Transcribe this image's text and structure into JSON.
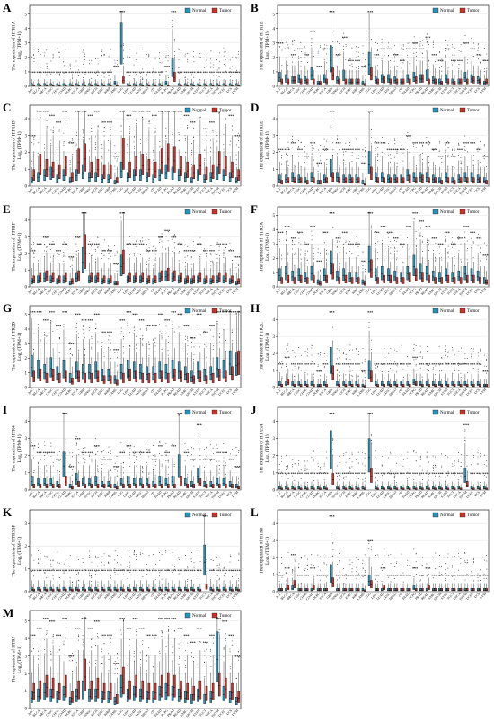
{
  "colors": {
    "normal": "#2e8fb3",
    "tumor": "#c2372d",
    "grid": "#d9d9d9",
    "frame": "#000000"
  },
  "legend": {
    "normal_label": "Normal",
    "tumor_label": "Tumor"
  },
  "cancers": [
    "ACC",
    "BLCA",
    "BRCA",
    "CESC",
    "CHOL",
    "COAD",
    "DLBC",
    "ESCA",
    "GBM",
    "HNSC",
    "KICH",
    "KIRC",
    "KIRP",
    "LAML",
    "LGG",
    "LIHC",
    "LUAD",
    "LUSC",
    "MESO",
    "OV",
    "PAAD",
    "PCPG",
    "PRAD",
    "READ",
    "SARC",
    "SKCM",
    "STAD",
    "TGCT",
    "THCA",
    "THYM",
    "UCEC",
    "UCS",
    "UVM"
  ],
  "chart_data": [
    {
      "panel": "A",
      "type": "box",
      "gene": "HTR1A",
      "ylabel_line1": "The expression of HTR1A",
      "ylabel_line2": "Log₂ (TPM+1)",
      "yticks": [
        0,
        1,
        2,
        3,
        4,
        5
      ],
      "ylim": [
        0,
        5.6
      ],
      "normal": [
        0.1,
        0.1,
        0.1,
        0.1,
        0.1,
        0.1,
        0.1,
        0.1,
        0.1,
        0.1,
        0.1,
        0.1,
        0.1,
        0.2,
        2.8,
        0.1,
        0.1,
        0.1,
        0.1,
        0.1,
        0.1,
        0.2,
        1.2,
        0.1,
        0.1,
        0.1,
        0.1,
        0.1,
        0.1,
        0.1,
        0.1,
        0.1,
        0.1
      ],
      "tumor": [
        0.05,
        0.05,
        0.05,
        0.05,
        0.05,
        0.05,
        0.05,
        0.05,
        0.05,
        0.05,
        0.05,
        0.05,
        0.05,
        0.05,
        0.4,
        0.05,
        0.05,
        0.05,
        0.05,
        0.05,
        0.05,
        0.05,
        0.6,
        0.05,
        0.05,
        0.05,
        0.05,
        0.05,
        0.05,
        0.05,
        0.05,
        0.05,
        0.05
      ]
    },
    {
      "panel": "B",
      "type": "box",
      "gene": "HTR1B",
      "ylabel_line1": "The expression of HTR1B",
      "ylabel_line2": "Log₂ (TPM+1)",
      "yticks": [
        0,
        1,
        2,
        3,
        4,
        5
      ],
      "ylim": [
        0,
        5.6
      ],
      "normal": [
        0.6,
        0.5,
        0.4,
        0.5,
        0.4,
        0.8,
        0.2,
        0.5,
        1.8,
        0.4,
        0.7,
        0.3,
        0.3,
        0.2,
        1.5,
        0.4,
        0.5,
        0.5,
        0.4,
        0.3,
        0.5,
        0.6,
        0.5,
        0.7,
        0.4,
        0.3,
        0.5,
        0.3,
        0.3,
        0.6,
        0.5,
        0.4,
        0.2
      ],
      "tumor": [
        0.3,
        0.3,
        0.4,
        0.3,
        0.3,
        0.3,
        0.2,
        0.3,
        0.8,
        0.3,
        0.3,
        0.3,
        0.3,
        0.1,
        0.8,
        0.3,
        0.4,
        0.3,
        0.3,
        0.3,
        0.3,
        0.4,
        0.5,
        0.3,
        0.3,
        0.2,
        0.3,
        0.2,
        0.3,
        0.3,
        0.4,
        0.3,
        0.3
      ]
    },
    {
      "panel": "C",
      "type": "box",
      "gene": "HTR1D",
      "ylabel_line1": "The expression of HTR1D",
      "ylabel_line2": "Log₂ (TPM+1)",
      "yticks": [
        0,
        1,
        2,
        3,
        4
      ],
      "ylim": [
        0,
        4.8
      ],
      "normal": [
        0.3,
        0.5,
        0.6,
        0.7,
        0.4,
        0.6,
        0.3,
        0.6,
        0.8,
        0.5,
        0.5,
        0.4,
        0.4,
        0.2,
        0.9,
        0.5,
        0.6,
        0.6,
        0.5,
        0.4,
        0.6,
        0.8,
        0.7,
        0.6,
        0.5,
        0.3,
        0.6,
        0.4,
        0.5,
        0.7,
        0.6,
        0.5,
        0.3
      ],
      "tumor": [
        0.6,
        1.2,
        1.0,
        0.9,
        0.8,
        1.1,
        0.5,
        1.4,
        1.6,
        0.9,
        1.0,
        0.8,
        0.8,
        0.3,
        1.8,
        0.9,
        1.1,
        1.2,
        1.0,
        0.9,
        1.4,
        1.6,
        1.5,
        1.1,
        0.9,
        0.8,
        1.2,
        0.7,
        0.8,
        1.3,
        1.1,
        0.9,
        0.6
      ]
    },
    {
      "panel": "D",
      "type": "box",
      "gene": "HTR1E",
      "ylabel_line1": "The expression of HTR1E",
      "ylabel_line2": "Log₂ (TPM+1)",
      "yticks": [
        0,
        1,
        2,
        3,
        4
      ],
      "ylim": [
        0,
        4.8
      ],
      "normal": [
        0.4,
        0.4,
        0.5,
        0.4,
        0.3,
        0.5,
        0.2,
        0.4,
        1.0,
        0.5,
        0.4,
        0.4,
        0.4,
        0.2,
        1.3,
        0.5,
        0.5,
        0.4,
        0.4,
        0.4,
        0.6,
        0.5,
        0.5,
        0.5,
        0.4,
        0.3,
        0.5,
        0.3,
        0.4,
        0.5,
        0.5,
        0.4,
        0.3
      ],
      "tumor": [
        0.2,
        0.3,
        0.3,
        0.3,
        0.2,
        0.3,
        0.2,
        0.3,
        0.5,
        0.3,
        0.3,
        0.3,
        0.3,
        0.1,
        0.7,
        0.3,
        0.3,
        0.3,
        0.3,
        0.3,
        0.4,
        0.3,
        0.4,
        0.3,
        0.3,
        0.2,
        0.3,
        0.2,
        0.3,
        0.3,
        0.3,
        0.3,
        0.2
      ]
    },
    {
      "panel": "E",
      "type": "box",
      "gene": "HTR1F",
      "ylabel_line1": "The expression of HTR1F",
      "ylabel_line2": "Log₂ (TPM+1)",
      "yticks": [
        0,
        1,
        2,
        3,
        4
      ],
      "ylim": [
        0,
        4.8
      ],
      "normal": [
        0.3,
        0.4,
        0.5,
        0.4,
        0.3,
        0.4,
        0.2,
        0.5,
        1.5,
        0.4,
        0.4,
        0.3,
        0.3,
        0.2,
        1.2,
        0.4,
        0.4,
        0.4,
        0.3,
        0.3,
        0.5,
        0.6,
        0.5,
        0.4,
        0.3,
        0.3,
        0.4,
        0.3,
        0.3,
        0.4,
        0.4,
        0.3,
        0.2
      ],
      "tumor": [
        0.4,
        0.5,
        0.6,
        0.5,
        0.4,
        0.5,
        0.3,
        0.6,
        2.0,
        0.5,
        0.5,
        0.4,
        0.4,
        0.2,
        1.4,
        0.5,
        0.5,
        0.5,
        0.4,
        0.4,
        0.6,
        0.7,
        0.6,
        0.5,
        0.4,
        0.4,
        0.5,
        0.4,
        0.4,
        0.5,
        0.5,
        0.4,
        0.3
      ]
    },
    {
      "panel": "F",
      "type": "box",
      "gene": "HTR2A",
      "ylabel_line1": "The expression of HTR2A",
      "ylabel_line2": "Log₂ (TPM+1)",
      "yticks": [
        0,
        1,
        2,
        3,
        4,
        5
      ],
      "ylim": [
        0,
        5.6
      ],
      "normal": [
        0.8,
        0.9,
        0.7,
        0.8,
        0.6,
        0.9,
        0.3,
        0.8,
        1.6,
        0.7,
        0.8,
        0.6,
        0.6,
        0.3,
        1.8,
        0.8,
        0.9,
        0.8,
        0.7,
        0.6,
        0.9,
        1.4,
        1.0,
        0.9,
        0.7,
        0.6,
        0.8,
        0.6,
        0.7,
        0.9,
        0.8,
        0.7,
        0.4
      ],
      "tumor": [
        0.4,
        0.5,
        0.4,
        0.5,
        0.4,
        0.5,
        0.2,
        0.5,
        1.0,
        0.4,
        0.5,
        0.4,
        0.4,
        0.2,
        1.2,
        0.4,
        0.5,
        0.5,
        0.4,
        0.4,
        0.6,
        0.8,
        0.6,
        0.5,
        0.4,
        0.4,
        0.5,
        0.4,
        0.4,
        0.5,
        0.5,
        0.4,
        0.3
      ]
    },
    {
      "panel": "G",
      "type": "box",
      "gene": "HTR2B",
      "ylabel_line1": "The expression of HTR2B",
      "ylabel_line2": "Log₂ (TPM+1)",
      "yticks": [
        0,
        1,
        2,
        3,
        4,
        5
      ],
      "ylim": [
        0,
        5.6
      ],
      "normal": [
        1.4,
        1.2,
        1.0,
        1.3,
        0.9,
        1.2,
        0.6,
        1.1,
        1.0,
        1.0,
        1.1,
        0.8,
        0.8,
        0.5,
        1.0,
        1.2,
        1.1,
        1.0,
        0.9,
        0.9,
        1.1,
        1.0,
        1.2,
        1.1,
        0.9,
        0.7,
        1.1,
        0.8,
        0.9,
        1.3,
        1.2,
        1.6,
        1.5
      ],
      "tumor": [
        0.7,
        0.8,
        0.6,
        0.8,
        0.6,
        0.7,
        0.4,
        0.7,
        0.6,
        0.6,
        0.7,
        0.5,
        0.5,
        0.3,
        0.6,
        0.8,
        0.7,
        0.6,
        0.6,
        0.6,
        0.7,
        0.6,
        0.8,
        0.7,
        0.6,
        0.5,
        0.7,
        0.5,
        0.6,
        0.8,
        0.7,
        0.9,
        1.6
      ]
    },
    {
      "panel": "H",
      "type": "box",
      "gene": "HTR2C",
      "ylabel_line1": "The expression of HTR2C",
      "ylabel_line2": "Log₂ (TPM+1)",
      "yticks": [
        0,
        1,
        2,
        3,
        4
      ],
      "ylim": [
        0,
        4.8
      ],
      "normal": [
        0.2,
        0.2,
        0.2,
        0.2,
        0.2,
        0.2,
        0.1,
        0.2,
        1.5,
        0.2,
        0.2,
        0.2,
        0.2,
        0.1,
        1.0,
        0.2,
        0.2,
        0.2,
        0.2,
        0.2,
        0.2,
        0.3,
        0.2,
        0.2,
        0.2,
        0.2,
        0.2,
        0.2,
        0.2,
        0.2,
        0.2,
        0.2,
        0.1
      ],
      "tumor": [
        0.1,
        0.3,
        0.1,
        0.1,
        0.1,
        0.1,
        0.1,
        0.1,
        0.8,
        0.1,
        0.1,
        0.1,
        0.1,
        0.05,
        0.6,
        0.1,
        0.1,
        0.1,
        0.1,
        0.1,
        0.1,
        0.2,
        0.1,
        0.1,
        0.1,
        0.1,
        0.1,
        0.1,
        0.1,
        0.1,
        0.1,
        0.1,
        0.1
      ]
    },
    {
      "panel": "I",
      "type": "box",
      "gene": "HTR4",
      "ylabel_line1": "The expression of HTR4",
      "ylabel_line2": "Log₂ (TPM+1)",
      "yticks": [
        0,
        1,
        2,
        3,
        4
      ],
      "ylim": [
        0,
        4.8
      ],
      "normal": [
        0.5,
        0.4,
        0.4,
        0.4,
        0.3,
        1.4,
        0.2,
        0.6,
        0.4,
        0.4,
        0.5,
        0.3,
        0.3,
        0.2,
        0.4,
        0.5,
        0.4,
        0.4,
        0.4,
        0.3,
        0.5,
        0.4,
        0.5,
        1.3,
        0.4,
        0.3,
        0.8,
        0.3,
        0.3,
        0.4,
        0.4,
        0.3,
        0.2
      ],
      "tumor": [
        0.2,
        0.2,
        0.2,
        0.2,
        0.2,
        0.5,
        0.1,
        0.3,
        0.2,
        0.2,
        0.2,
        0.2,
        0.2,
        0.1,
        0.2,
        0.2,
        0.2,
        0.2,
        0.2,
        0.2,
        0.2,
        0.2,
        0.2,
        0.5,
        0.2,
        0.2,
        0.4,
        0.2,
        0.2,
        0.2,
        0.2,
        0.2,
        0.1
      ]
    },
    {
      "panel": "J",
      "type": "box",
      "gene": "HTR5A",
      "ylabel_line1": "The expression of HTR5A",
      "ylabel_line2": "Log₂ (TPM+1)",
      "yticks": [
        0,
        1,
        2,
        3,
        4
      ],
      "ylim": [
        0,
        4.8
      ],
      "normal": [
        0.1,
        0.1,
        0.1,
        0.1,
        0.1,
        0.1,
        0.1,
        0.1,
        2.2,
        0.1,
        0.1,
        0.1,
        0.1,
        0.1,
        1.9,
        0.1,
        0.1,
        0.1,
        0.1,
        0.1,
        0.1,
        0.1,
        0.1,
        0.1,
        0.1,
        0.1,
        0.1,
        0.1,
        0.1,
        0.8,
        0.1,
        0.1,
        0.1
      ],
      "tumor": [
        0.05,
        0.05,
        0.05,
        0.05,
        0.05,
        0.05,
        0.05,
        0.05,
        0.6,
        0.05,
        0.05,
        0.05,
        0.05,
        0.05,
        0.8,
        0.05,
        0.05,
        0.05,
        0.05,
        0.05,
        0.05,
        0.05,
        0.05,
        0.05,
        0.05,
        0.05,
        0.05,
        0.05,
        0.05,
        0.3,
        0.05,
        0.05,
        0.05
      ]
    },
    {
      "panel": "K",
      "type": "box",
      "gene": "HTR5BP",
      "ylabel_line1": "The expression of HTR5BP",
      "ylabel_line2": "Log₂ (TPM+1)",
      "yticks": [
        0,
        1,
        2,
        3
      ],
      "ylim": [
        0,
        3.6
      ],
      "normal": [
        0.1,
        0.1,
        0.1,
        0.1,
        0.1,
        0.1,
        0.1,
        0.1,
        0.1,
        0.1,
        0.1,
        0.1,
        0.1,
        0.1,
        0.1,
        0.1,
        0.1,
        0.1,
        0.1,
        0.1,
        0.1,
        0.1,
        0.1,
        0.1,
        0.1,
        0.1,
        0.1,
        1.3,
        0.1,
        0.1,
        0.1,
        0.1,
        0.1
      ],
      "tumor": [
        0.05,
        0.05,
        0.05,
        0.05,
        0.05,
        0.05,
        0.05,
        0.05,
        0.05,
        0.05,
        0.05,
        0.05,
        0.05,
        0.05,
        0.05,
        0.05,
        0.05,
        0.05,
        0.05,
        0.05,
        0.05,
        0.05,
        0.05,
        0.05,
        0.05,
        0.05,
        0.05,
        0.2,
        0.05,
        0.05,
        0.05,
        0.05,
        0.05
      ]
    },
    {
      "panel": "L",
      "type": "box",
      "gene": "HTR6",
      "ylabel_line1": "The expression of HTR6",
      "ylabel_line2": "Log₂ (TPM+1)",
      "yticks": [
        0,
        1,
        2,
        3,
        4
      ],
      "ylim": [
        0,
        4.8
      ],
      "normal": [
        0.1,
        0.1,
        0.2,
        0.1,
        0.1,
        0.1,
        0.1,
        0.1,
        1.0,
        0.1,
        0.1,
        0.1,
        0.1,
        0.1,
        0.6,
        0.1,
        0.1,
        0.1,
        0.1,
        0.1,
        0.1,
        0.2,
        0.1,
        0.1,
        0.1,
        0.1,
        0.1,
        0.1,
        0.1,
        0.1,
        0.1,
        0.1,
        0.1
      ],
      "tumor": [
        0.1,
        0.2,
        0.4,
        0.1,
        0.1,
        0.2,
        0.1,
        0.1,
        0.5,
        0.1,
        0.1,
        0.1,
        0.1,
        0.05,
        0.4,
        0.1,
        0.2,
        0.1,
        0.1,
        0.1,
        0.1,
        0.1,
        0.1,
        0.2,
        0.1,
        0.1,
        0.1,
        0.1,
        0.1,
        0.1,
        0.1,
        0.1,
        0.1
      ]
    },
    {
      "panel": "M",
      "type": "box",
      "gene": "HTR7",
      "ylabel_line1": "The expression of HTR7",
      "ylabel_line2": "Log₂ (TPM+1)",
      "yticks": [
        0,
        1,
        2,
        3,
        4,
        5
      ],
      "ylim": [
        0,
        5.6
      ],
      "normal": [
        0.6,
        0.7,
        0.9,
        0.7,
        0.6,
        0.8,
        0.4,
        0.7,
        1.0,
        0.7,
        0.7,
        0.6,
        0.6,
        0.4,
        1.2,
        0.7,
        0.8,
        0.7,
        0.6,
        0.6,
        0.8,
        0.9,
        0.8,
        0.7,
        0.6,
        0.5,
        0.7,
        0.5,
        0.6,
        2.8,
        0.8,
        0.6,
        0.4
      ],
      "tumor": [
        0.9,
        1.0,
        1.2,
        1.1,
        0.9,
        1.2,
        0.6,
        1.0,
        1.8,
        1.0,
        1.1,
        0.9,
        0.9,
        0.5,
        1.5,
        1.0,
        1.2,
        1.0,
        0.9,
        0.9,
        1.2,
        1.3,
        1.2,
        1.0,
        0.9,
        0.8,
        1.0,
        0.8,
        0.9,
        1.3,
        1.1,
        0.9,
        0.6
      ]
    }
  ]
}
